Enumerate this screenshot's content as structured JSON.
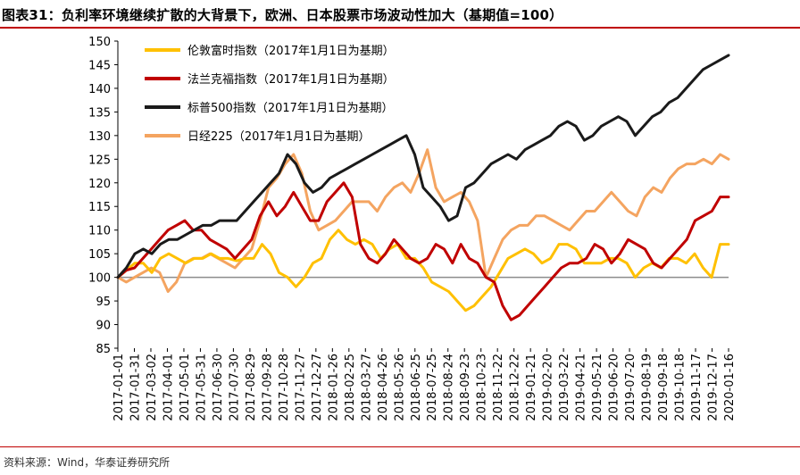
{
  "title": "图表31：负利率环境继续扩散的大背景下，欧洲、日本股票市场波动性加大（基期值=100）",
  "source": "资料来源：Wind，华泰证券研究所",
  "chart_data": {
    "type": "line",
    "ylim": [
      85,
      150
    ],
    "yticks": [
      85,
      90,
      95,
      100,
      105,
      110,
      115,
      120,
      125,
      130,
      135,
      140,
      145,
      150
    ],
    "baseline": 100,
    "x_tick_labels": [
      "2017-01-01",
      "2017-01-31",
      "2017-03-02",
      "2017-04-01",
      "2017-05-01",
      "2017-05-31",
      "2017-06-30",
      "2017-07-30",
      "2017-08-29",
      "2017-09-28",
      "2017-10-28",
      "2017-11-27",
      "2017-12-27",
      "2018-01-26",
      "2018-02-25",
      "2018-03-27",
      "2018-04-26",
      "2018-05-26",
      "2018-06-25",
      "2018-07-25",
      "2018-08-24",
      "2018-09-23",
      "2018-10-23",
      "2018-11-22",
      "2018-12-22",
      "2019-01-21",
      "2019-02-20",
      "2019-03-22",
      "2019-04-21",
      "2019-05-21",
      "2019-06-20",
      "2019-07-20",
      "2019-08-19",
      "2019-09-18",
      "2019-10-18",
      "2019-11-17",
      "2019-12-17",
      "2020-01-16"
    ],
    "series": [
      {
        "name": "伦敦富时指数（2017年1月1日为基期）",
        "color": "#ffc000",
        "values": [
          100,
          101.5,
          103,
          103,
          101,
          104,
          105,
          104,
          103,
          104,
          104,
          105,
          104,
          104,
          103.5,
          104,
          104,
          107,
          105,
          101,
          100,
          98,
          100,
          103,
          104,
          108,
          110,
          108,
          107,
          108,
          107,
          104,
          106,
          107,
          104,
          104,
          102,
          99,
          98,
          97,
          95,
          93,
          94,
          96,
          98,
          101,
          104,
          105,
          106,
          105,
          103,
          104,
          107,
          107,
          106,
          103,
          103,
          103,
          104,
          104,
          103,
          100,
          102,
          103,
          102,
          104,
          104,
          103,
          105,
          102,
          100,
          107,
          107
        ]
      },
      {
        "name": "法兰克福指数（2017年1月1日为基期）",
        "color": "#c00000",
        "values": [
          100,
          101.5,
          102,
          104,
          106,
          108,
          110,
          111,
          112,
          110,
          110,
          108,
          107,
          106,
          104,
          106,
          108,
          113,
          116,
          113,
          115,
          118,
          115,
          112,
          112,
          116,
          118,
          120,
          117,
          107,
          104,
          103,
          105,
          108,
          106,
          104,
          103,
          104,
          107,
          106,
          103,
          107,
          104,
          103,
          100,
          99,
          94,
          91,
          92,
          94,
          96,
          98,
          100,
          102,
          103,
          103,
          104,
          107,
          106,
          103,
          105,
          108,
          107,
          106,
          103,
          102,
          104,
          106,
          108,
          112,
          113,
          114,
          117,
          117
        ]
      },
      {
        "name": "标普500指数（2017年1月1日为基期）",
        "color": "#1a1a1a",
        "values": [
          100,
          102,
          105,
          106,
          105,
          107,
          108,
          108,
          109,
          110,
          111,
          111,
          112,
          112,
          112,
          114,
          116,
          118,
          120,
          122,
          126,
          124,
          120,
          118,
          119,
          121,
          122,
          123,
          124,
          125,
          126,
          127,
          128,
          129,
          130,
          126,
          119,
          117,
          115,
          112,
          113,
          119,
          120,
          122,
          124,
          125,
          126,
          125,
          127,
          128,
          129,
          130,
          132,
          133,
          132,
          129,
          130,
          132,
          133,
          134,
          133,
          130,
          132,
          134,
          135,
          137,
          138,
          140,
          142,
          144,
          145,
          146,
          147
        ]
      },
      {
        "name": "日经225（2017年1月1日为基期）",
        "color": "#f4a460",
        "values": [
          100,
          99,
          100,
          101,
          102,
          101,
          97,
          99,
          103,
          104,
          104,
          105,
          104,
          103,
          102,
          104,
          106,
          112,
          119,
          121,
          124,
          126,
          122,
          114,
          110,
          111,
          112,
          114,
          116,
          116,
          116,
          114,
          117,
          119,
          120,
          118,
          122,
          127,
          119,
          116,
          117,
          118,
          116,
          112,
          100,
          104,
          108,
          110,
          111,
          111,
          113,
          113,
          112,
          111,
          110,
          112,
          114,
          114,
          116,
          118,
          116,
          114,
          113,
          117,
          119,
          118,
          121,
          123,
          124,
          124,
          125,
          124,
          126,
          125
        ]
      }
    ]
  }
}
